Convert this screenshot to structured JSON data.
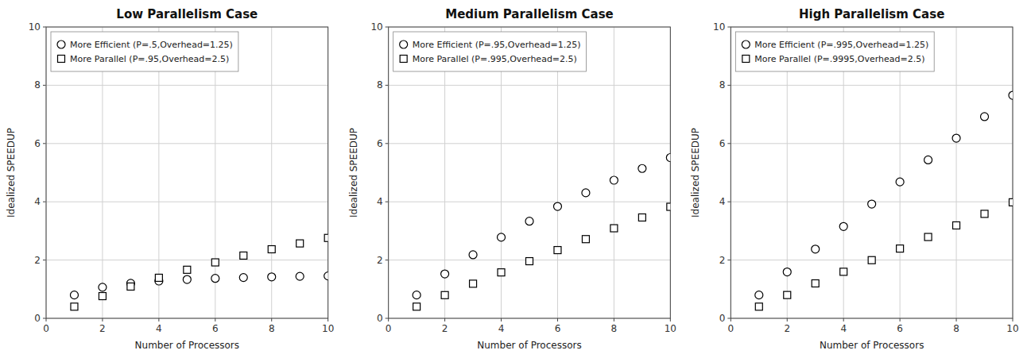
{
  "chart_data": [
    {
      "type": "scatter",
      "title": "Low Parallelism Case",
      "xlabel": "Number of Processors",
      "ylabel": "Idealized SPEEDUP",
      "x": [
        1,
        2,
        3,
        4,
        5,
        6,
        7,
        8,
        9,
        10
      ],
      "series": [
        {
          "name": "More Efficient (P=.5,Overhead=1.25)",
          "marker": "circle",
          "color": "#000000",
          "values": [
            0.8,
            1.0666666666666667,
            1.2,
            1.28,
            1.3333333333333333,
            1.3714285714285714,
            1.4,
            1.4222222222222223,
            1.44,
            1.4545454545454546
          ]
        },
        {
          "name": "More Parallel (P=.95,Overhead=2.5)",
          "marker": "square",
          "color": "#000000",
          "values": [
            0.4,
            0.7619047619047619,
            1.0909090909090908,
            1.391304347826087,
            1.6666666666666667,
            1.92,
            2.1538461538461537,
            2.3703703703703702,
            2.5714285714285716,
            2.7586206896551726
          ]
        }
      ],
      "xlim": [
        0,
        10
      ],
      "ylim": [
        0,
        10
      ],
      "xticks": [
        0,
        2,
        4,
        6,
        8,
        10
      ],
      "yticks": [
        0,
        2,
        4,
        6,
        8,
        10
      ],
      "grid": true,
      "legend": "upper left"
    },
    {
      "type": "scatter",
      "title": "Medium Parallelism Case",
      "xlabel": "Number of Processors",
      "ylabel": "Idealized SPEEDUP",
      "x": [
        1,
        2,
        3,
        4,
        5,
        6,
        7,
        8,
        9,
        10
      ],
      "series": [
        {
          "name": "More Efficient (P=.95,Overhead=1.25)",
          "marker": "circle",
          "color": "#000000",
          "values": [
            0.8,
            1.5238095238095237,
            2.1818181818181817,
            2.782608695652174,
            3.3333333333333335,
            3.84,
            4.3076923076923075,
            4.7407407407407405,
            5.142857142857143,
            5.517241379310345
          ]
        },
        {
          "name": "More Parallel (P=.995,Overhead=2.5)",
          "marker": "square",
          "color": "#000000",
          "values": [
            0.4,
            0.796019900497512,
            1.188118811881188,
            1.576354679802956,
            1.9607843137254901,
            2.341463414634146,
            2.718446601941748,
            3.0917874396135265,
            3.4615384615384617,
            3.827751196172249
          ]
        }
      ],
      "xlim": [
        0,
        10
      ],
      "ylim": [
        0,
        10
      ],
      "xticks": [
        0,
        2,
        4,
        6,
        8,
        10
      ],
      "yticks": [
        0,
        2,
        4,
        6,
        8,
        10
      ],
      "grid": true,
      "legend": "upper left"
    },
    {
      "type": "scatter",
      "title": "High Parallelism Case",
      "xlabel": "Number of Processors",
      "ylabel": "Idealized SPEEDUP",
      "x": [
        1,
        2,
        3,
        4,
        5,
        6,
        7,
        8,
        9,
        10
      ],
      "series": [
        {
          "name": "More Efficient (P=.995,Overhead=1.25)",
          "marker": "circle",
          "color": "#000000",
          "values": [
            0.8,
            1.592039800995024,
            2.376237623762376,
            3.152709359605912,
            3.9215686274509802,
            4.682926829268292,
            5.436893203883495,
            6.183574879227053,
            6.923076923076923,
            7.655502392344498
          ]
        },
        {
          "name": "More Parallel (P=.9995,Overhead=2.5)",
          "marker": "square",
          "color": "#000000",
          "values": [
            0.4,
            0.79960019990005,
            1.1988011988011988,
            1.5976035946080878,
            1.996007984031936,
            2.394014962593516,
            2.7916251246261217,
            3.188839063278525,
            3.585657370517928,
            3.982080637132902
          ]
        }
      ],
      "xlim": [
        0,
        10
      ],
      "ylim": [
        0,
        10
      ],
      "xticks": [
        0,
        2,
        4,
        6,
        8,
        10
      ],
      "yticks": [
        0,
        2,
        4,
        6,
        8,
        10
      ],
      "grid": true,
      "legend": "upper left"
    }
  ]
}
